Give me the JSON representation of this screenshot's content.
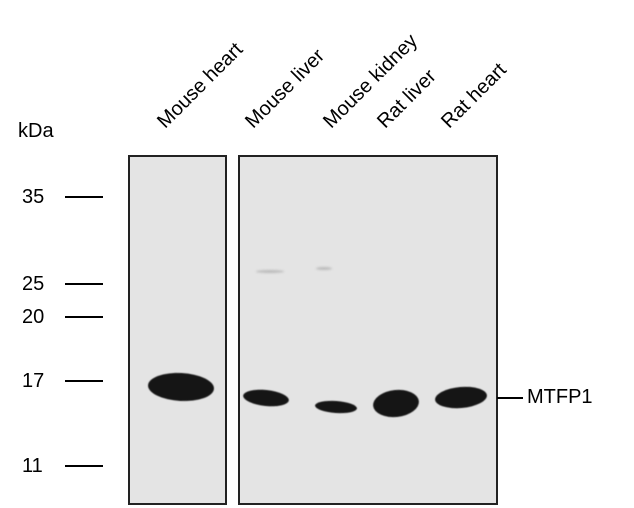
{
  "lanes": [
    "Mouse heart",
    "Mouse liver",
    "Mouse kidney",
    "Rat liver",
    "Rat heart"
  ],
  "unit_label": "kDa",
  "markers": [
    "35",
    "25",
    "20",
    "17",
    "11"
  ],
  "band_label": "MTFP1"
}
